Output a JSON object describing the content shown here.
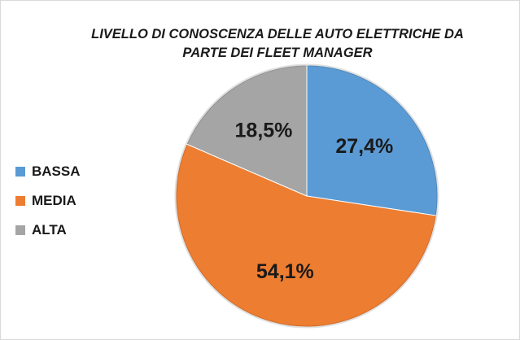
{
  "chart_data": {
    "type": "pie",
    "title_lines": [
      "LIVELLO DI CONOSCENZA DELLE AUTO ELETTRICHE DA",
      "PARTE DEI FLEET MANAGER"
    ],
    "slices": [
      {
        "name": "BASSA",
        "value": 27.4,
        "label": "27,4%",
        "color": "#5b9bd5"
      },
      {
        "name": "MEDIA",
        "value": 54.1,
        "label": "54,1%",
        "color": "#ed7d31"
      },
      {
        "name": "ALTA",
        "value": 18.5,
        "label": "18,5%",
        "color": "#a5a5a5"
      }
    ],
    "legend_position": "left",
    "start_angle_deg": 0,
    "direction": "clockwise"
  }
}
